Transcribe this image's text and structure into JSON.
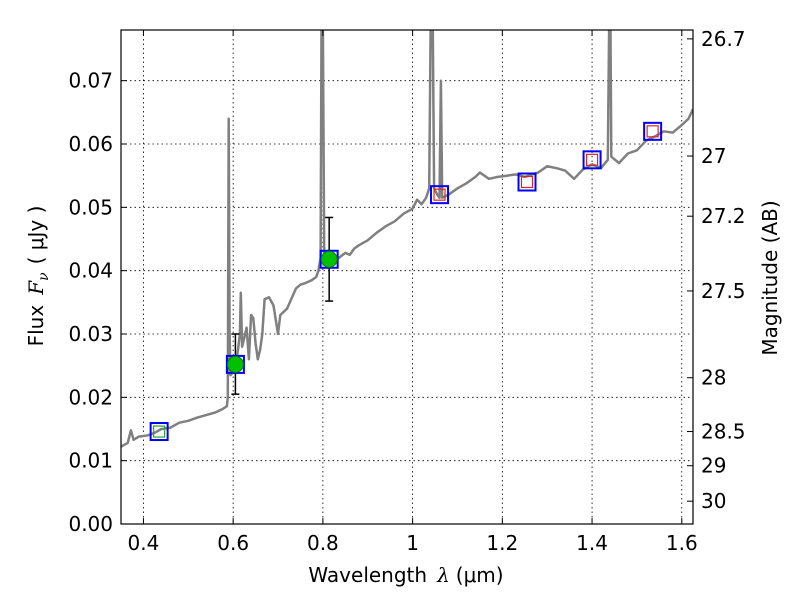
{
  "chart_data": {
    "type": "line",
    "xlabel_text": "Wavelength",
    "xlabel_symbol": "λ",
    "xlabel_unit": "(μm)",
    "ylabel_text": "Flux",
    "ylabel_symbol": "F",
    "ylabel_symbol_sub": "ν",
    "ylabel_unit": "( μJy )",
    "y2label": "Magnitude (AB)",
    "xlim": [
      0.35,
      1.625
    ],
    "ylim": [
      0.0,
      0.078
    ],
    "grid": true,
    "x_ticks": [
      0.4,
      0.6,
      0.8,
      1.0,
      1.2,
      1.4,
      1.6
    ],
    "x_tick_labels": [
      "0.4",
      "0.6",
      "0.8",
      "1",
      "1.2",
      "1.4",
      "1.6"
    ],
    "y_ticks": [
      0.0,
      0.01,
      0.02,
      0.03,
      0.04,
      0.05,
      0.06,
      0.07
    ],
    "y_tick_labels": [
      "0.00",
      "0.01",
      "0.02",
      "0.03",
      "0.04",
      "0.05",
      "0.06",
      "0.07"
    ],
    "y2_ticks": [
      {
        "flux": 0.0766,
        "label": "26.7"
      },
      {
        "flux": 0.0581,
        "label": "27"
      },
      {
        "flux": 0.0486,
        "label": "27.2"
      },
      {
        "flux": 0.0368,
        "label": "27.5"
      },
      {
        "flux": 0.0231,
        "label": "28"
      },
      {
        "flux": 0.0146,
        "label": "28.5"
      },
      {
        "flux": 0.0092,
        "label": "29"
      },
      {
        "flux": 0.0036,
        "label": "30"
      }
    ],
    "series": [
      {
        "name": "model spectrum",
        "color": "#808080",
        "points": [
          [
            0.35,
            0.0122
          ],
          [
            0.365,
            0.0128
          ],
          [
            0.372,
            0.0148
          ],
          [
            0.378,
            0.0133
          ],
          [
            0.39,
            0.0138
          ],
          [
            0.41,
            0.014
          ],
          [
            0.425,
            0.0144
          ],
          [
            0.44,
            0.015
          ],
          [
            0.46,
            0.0152
          ],
          [
            0.48,
            0.016
          ],
          [
            0.5,
            0.0163
          ],
          [
            0.52,
            0.0168
          ],
          [
            0.54,
            0.0172
          ],
          [
            0.56,
            0.0176
          ],
          [
            0.575,
            0.0181
          ],
          [
            0.586,
            0.0186
          ],
          [
            0.588,
            0.02
          ],
          [
            0.59,
            0.064
          ],
          [
            0.592,
            0.03
          ],
          [
            0.594,
            0.0235
          ],
          [
            0.6,
            0.024
          ],
          [
            0.605,
            0.0255
          ],
          [
            0.61,
            0.027
          ],
          [
            0.615,
            0.03
          ],
          [
            0.617,
            0.0365
          ],
          [
            0.62,
            0.028
          ],
          [
            0.625,
            0.0295
          ],
          [
            0.63,
            0.031
          ],
          [
            0.635,
            0.026
          ],
          [
            0.64,
            0.033
          ],
          [
            0.645,
            0.0325
          ],
          [
            0.65,
            0.0285
          ],
          [
            0.655,
            0.026
          ],
          [
            0.66,
            0.0275
          ],
          [
            0.665,
            0.03
          ],
          [
            0.67,
            0.0355
          ],
          [
            0.68,
            0.0358
          ],
          [
            0.69,
            0.0345
          ],
          [
            0.7,
            0.03
          ],
          [
            0.705,
            0.033
          ],
          [
            0.72,
            0.034
          ],
          [
            0.74,
            0.0372
          ],
          [
            0.75,
            0.0378
          ],
          [
            0.76,
            0.038
          ],
          [
            0.775,
            0.0385
          ],
          [
            0.785,
            0.039
          ],
          [
            0.79,
            0.04
          ],
          [
            0.795,
            0.042
          ],
          [
            0.797,
            0.078
          ],
          [
            0.8,
            0.078
          ],
          [
            0.803,
            0.043
          ],
          [
            0.81,
            0.0405
          ],
          [
            0.82,
            0.0415
          ],
          [
            0.835,
            0.042
          ],
          [
            0.85,
            0.0428
          ],
          [
            0.86,
            0.0425
          ],
          [
            0.87,
            0.0435
          ],
          [
            0.88,
            0.044
          ],
          [
            0.9,
            0.0448
          ],
          [
            0.92,
            0.046
          ],
          [
            0.94,
            0.047
          ],
          [
            0.96,
            0.0478
          ],
          [
            0.98,
            0.049
          ],
          [
            1.0,
            0.0498
          ],
          [
            1.01,
            0.0512
          ],
          [
            1.02,
            0.0505
          ],
          [
            1.03,
            0.0515
          ],
          [
            1.037,
            0.053
          ],
          [
            1.04,
            0.078
          ],
          [
            1.045,
            0.078
          ],
          [
            1.048,
            0.053
          ],
          [
            1.055,
            0.052
          ],
          [
            1.06,
            0.0515
          ],
          [
            1.063,
            0.07
          ],
          [
            1.066,
            0.0515
          ],
          [
            1.08,
            0.052
          ],
          [
            1.1,
            0.053
          ],
          [
            1.12,
            0.0538
          ],
          [
            1.14,
            0.0548
          ],
          [
            1.15,
            0.0555
          ],
          [
            1.17,
            0.0545
          ],
          [
            1.19,
            0.0548
          ],
          [
            1.21,
            0.055
          ],
          [
            1.23,
            0.0552
          ],
          [
            1.25,
            0.0548
          ],
          [
            1.28,
            0.0555
          ],
          [
            1.3,
            0.0565
          ],
          [
            1.32,
            0.0562
          ],
          [
            1.34,
            0.0558
          ],
          [
            1.36,
            0.0545
          ],
          [
            1.38,
            0.056
          ],
          [
            1.4,
            0.0568
          ],
          [
            1.42,
            0.0562
          ],
          [
            1.435,
            0.0575
          ],
          [
            1.438,
            0.078
          ],
          [
            1.441,
            0.078
          ],
          [
            1.443,
            0.058
          ],
          [
            1.46,
            0.057
          ],
          [
            1.48,
            0.0585
          ],
          [
            1.5,
            0.059
          ],
          [
            1.52,
            0.0605
          ],
          [
            1.54,
            0.0612
          ],
          [
            1.56,
            0.062
          ],
          [
            1.58,
            0.0618
          ],
          [
            1.6,
            0.063
          ],
          [
            1.615,
            0.064
          ],
          [
            1.625,
            0.0655
          ]
        ]
      }
    ],
    "observed_points": [
      {
        "x": 0.605,
        "y": 0.0252,
        "yerr": [
          0.0205,
          0.03
        ]
      },
      {
        "x": 0.814,
        "y": 0.0418,
        "yerr": [
          0.0352,
          0.0484
        ]
      }
    ],
    "model_photometry": [
      {
        "x": 0.435,
        "y": 0.0146,
        "color": "#2ca02c"
      },
      {
        "x": 0.605,
        "y": 0.0252,
        "color": "#2ca02c"
      },
      {
        "x": 0.814,
        "y": 0.0418,
        "color": "#2ca02c"
      },
      {
        "x": 1.06,
        "y": 0.052,
        "color": "#d62728"
      },
      {
        "x": 1.255,
        "y": 0.054,
        "color": "#d62728"
      },
      {
        "x": 1.4,
        "y": 0.0575,
        "color": "#d62728"
      },
      {
        "x": 1.535,
        "y": 0.062,
        "color": "#d62728"
      }
    ],
    "colors": {
      "spectrum": "#808080",
      "observed": "#00c000",
      "box_outer": "#0000ff",
      "errorbar": "#000000",
      "grid": "#000000"
    }
  }
}
